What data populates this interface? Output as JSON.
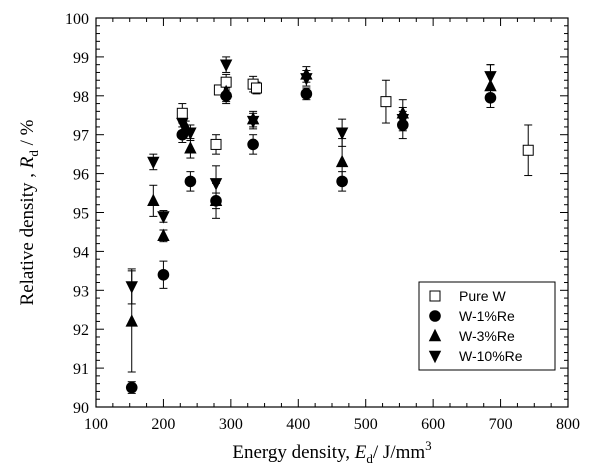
{
  "chart_data": {
    "type": "scatter",
    "x_axis": {
      "label_prefix": "Energy density, ",
      "label_symbol": "E",
      "label_subscript": "d",
      "label_suffix": "/ J/mm",
      "label_superscript": "3",
      "range": [
        100,
        800
      ],
      "ticks": [
        "100",
        "200",
        "300",
        "400",
        "500",
        "600",
        "700",
        "800"
      ]
    },
    "y_axis": {
      "label_prefix": "Relative density , ",
      "label_symbol": "R",
      "label_subscript": "d",
      "label_suffix": " / %",
      "range": [
        90,
        100
      ],
      "ticks": [
        "90",
        "91",
        "92",
        "93",
        "94",
        "95",
        "96",
        "97",
        "98",
        "99",
        "100"
      ]
    },
    "grid": false,
    "legend_position": "bottom-right",
    "series": [
      {
        "name": "Pure W",
        "marker": "open-square",
        "points": [
          {
            "x": 228,
            "y": 97.55,
            "err": 0.25
          },
          {
            "x": 278,
            "y": 96.75,
            "err": 0.25
          },
          {
            "x": 283,
            "y": 98.15,
            "err": 0.1
          },
          {
            "x": 293,
            "y": 98.35,
            "err": 0.2
          },
          {
            "x": 333,
            "y": 98.3,
            "err": 0.2
          },
          {
            "x": 338,
            "y": 98.2,
            "err": 0.15
          },
          {
            "x": 530,
            "y": 97.85,
            "err": 0.55
          },
          {
            "x": 741,
            "y": 96.6,
            "err": 0.65
          }
        ]
      },
      {
        "name": "W-1%Re",
        "marker": "filled-circle",
        "points": [
          {
            "x": 153,
            "y": 90.5,
            "err": 0.15
          },
          {
            "x": 200,
            "y": 93.4,
            "err": 0.35
          },
          {
            "x": 228,
            "y": 97.0,
            "err": 0.2
          },
          {
            "x": 240,
            "y": 95.8,
            "err": 0.25
          },
          {
            "x": 278,
            "y": 95.3,
            "err": 0.2
          },
          {
            "x": 293,
            "y": 98.0,
            "err": 0.2
          },
          {
            "x": 333,
            "y": 96.75,
            "err": 0.25
          },
          {
            "x": 412,
            "y": 98.05,
            "err": 0.15
          },
          {
            "x": 465,
            "y": 95.8,
            "err": 0.25
          },
          {
            "x": 555,
            "y": 97.25,
            "err": 0.35
          },
          {
            "x": 685,
            "y": 97.95,
            "err": 0.1
          }
        ]
      },
      {
        "name": "W-3%Re",
        "marker": "filled-triangle-up",
        "points": [
          {
            "x": 153,
            "y": 92.2,
            "err": 1.3
          },
          {
            "x": 185,
            "y": 95.3,
            "err": 0.4
          },
          {
            "x": 200,
            "y": 94.4,
            "err": 0.15
          },
          {
            "x": 233,
            "y": 97.2,
            "err": 0.15
          },
          {
            "x": 240,
            "y": 96.65,
            "err": 0.25
          },
          {
            "x": 278,
            "y": 95.3,
            "err": 0.45
          },
          {
            "x": 293,
            "y": 98.1,
            "err": 0.25
          },
          {
            "x": 333,
            "y": 97.4,
            "err": 0.2
          },
          {
            "x": 412,
            "y": 98.55,
            "err": 0.2
          },
          {
            "x": 465,
            "y": 96.3,
            "err": 0.6
          },
          {
            "x": 555,
            "y": 97.55,
            "err": 0.35
          },
          {
            "x": 685,
            "y": 98.25,
            "err": 0.55
          }
        ]
      },
      {
        "name": "W-10%Re",
        "marker": "filled-triangle-down",
        "points": [
          {
            "x": 153,
            "y": 93.1,
            "err": 0.45
          },
          {
            "x": 185,
            "y": 96.3,
            "err": 0.2
          },
          {
            "x": 200,
            "y": 94.9,
            "err": 0.15
          },
          {
            "x": 228,
            "y": 97.3,
            "err": 0.2
          },
          {
            "x": 240,
            "y": 97.05,
            "err": 0.2
          },
          {
            "x": 278,
            "y": 95.75,
            "err": 0.45
          },
          {
            "x": 293,
            "y": 98.8,
            "err": 0.2
          },
          {
            "x": 333,
            "y": 97.35,
            "err": 0.2
          },
          {
            "x": 412,
            "y": 98.45,
            "err": 0.2
          },
          {
            "x": 465,
            "y": 97.05,
            "err": 0.35
          },
          {
            "x": 555,
            "y": 97.4,
            "err": 0.3
          },
          {
            "x": 685,
            "y": 98.5,
            "err": 0.3
          }
        ]
      }
    ]
  }
}
